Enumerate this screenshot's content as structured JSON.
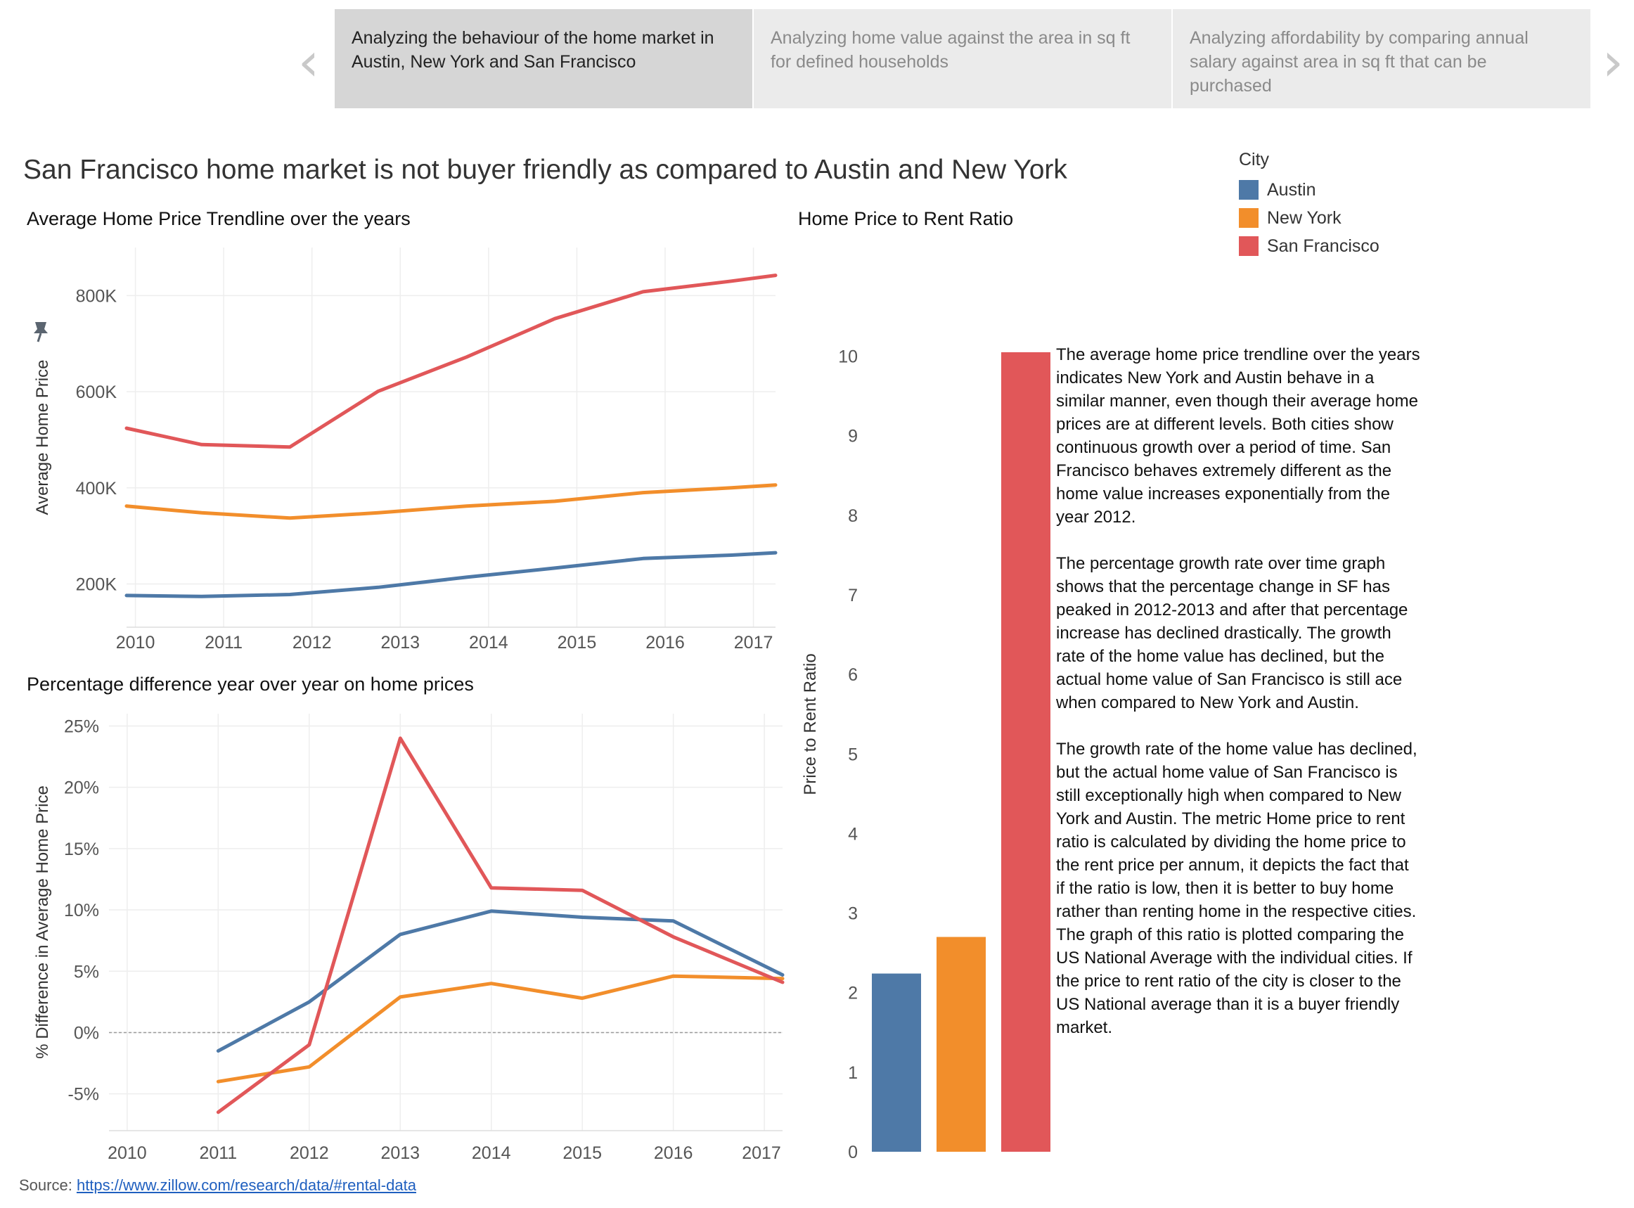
{
  "story_nav": {
    "prev_icon": "chevron-left-icon",
    "next_icon": "chevron-right-icon",
    "points": [
      {
        "label": "Analyzing the behaviour of the home market in Austin, New York and San Francisco",
        "active": true
      },
      {
        "label": "Analyzing home value against the area in sq ft for defined households",
        "active": false
      },
      {
        "label": "Analyzing affordability by comparing annual salary against area in sq ft that can be purchased",
        "active": false
      }
    ]
  },
  "headline": "San Francisco home market is not buyer friendly as compared to Austin and New York",
  "legend": {
    "title": "City",
    "items": [
      {
        "label": "Austin",
        "color": "#4e79a7"
      },
      {
        "label": "New York",
        "color": "#f28e2b"
      },
      {
        "label": "San Francisco",
        "color": "#e15759"
      }
    ]
  },
  "chart_data": [
    {
      "type": "line",
      "title": "Average Home Price Trendline over the years",
      "xlabel": "",
      "ylabel": "Average Home Price",
      "x": [
        2010,
        2011,
        2012,
        2013,
        2014,
        2015,
        2016,
        2017
      ],
      "x_range": [
        2009.9,
        2017.25
      ],
      "ylim": [
        110000,
        900000
      ],
      "yticks": [
        200000,
        400000,
        600000,
        800000
      ],
      "ytick_labels": [
        "200K",
        "400K",
        "600K",
        "800K"
      ],
      "xtick_labels": [
        "2010",
        "2011",
        "2012",
        "2013",
        "2014",
        "2015",
        "2016",
        "2017"
      ],
      "series": [
        {
          "name": "Austin",
          "color": "#4e79a7",
          "x": [
            2009.9,
            2010.75,
            2011.75,
            2012.75,
            2013.75,
            2014.75,
            2015.75,
            2016.75,
            2017.25
          ],
          "values": [
            176000,
            174000,
            178000,
            193000,
            214000,
            233000,
            253000,
            260000,
            265000
          ]
        },
        {
          "name": "New York",
          "color": "#f28e2b",
          "x": [
            2009.9,
            2010.75,
            2011.75,
            2012.75,
            2013.75,
            2014.75,
            2015.75,
            2016.75,
            2017.25
          ],
          "values": [
            362000,
            348000,
            337000,
            348000,
            362000,
            372000,
            390000,
            400000,
            406000
          ]
        },
        {
          "name": "San Francisco",
          "color": "#e15759",
          "x": [
            2009.9,
            2010.75,
            2011.75,
            2012.75,
            2013.75,
            2014.75,
            2015.75,
            2016.75,
            2017.25
          ],
          "values": [
            524000,
            490000,
            485000,
            601000,
            672000,
            752000,
            808000,
            830000,
            842000
          ]
        }
      ]
    },
    {
      "type": "line",
      "title": "Percentage difference year over year on home prices",
      "xlabel": "",
      "ylabel": "% Difference in Average Home Price",
      "x": [
        2010,
        2011,
        2012,
        2013,
        2014,
        2015,
        2016,
        2017
      ],
      "x_range": [
        2009.8,
        2017.2
      ],
      "ylim": [
        -8,
        26
      ],
      "yticks": [
        -5,
        0,
        5,
        10,
        15,
        20,
        25
      ],
      "ytick_labels": [
        "-5%",
        "0%",
        "5%",
        "10%",
        "15%",
        "20%",
        "25%"
      ],
      "xtick_labels": [
        "2010",
        "2011",
        "2012",
        "2013",
        "2014",
        "2015",
        "2016",
        "2017"
      ],
      "zero_line": true,
      "series": [
        {
          "name": "Austin",
          "color": "#4e79a7",
          "x": [
            2011,
            2012,
            2013,
            2014,
            2015,
            2016,
            2017.2
          ],
          "values": [
            -1.5,
            2.5,
            8.0,
            9.9,
            9.4,
            9.1,
            4.7
          ]
        },
        {
          "name": "New York",
          "color": "#f28e2b",
          "x": [
            2011,
            2012,
            2013,
            2014,
            2015,
            2016,
            2017.2
          ],
          "values": [
            -4.0,
            -2.8,
            2.9,
            4.0,
            2.8,
            4.6,
            4.4
          ]
        },
        {
          "name": "San Francisco",
          "color": "#e15759",
          "x": [
            2011,
            2012,
            2013,
            2014,
            2015,
            2016,
            2017.2
          ],
          "values": [
            -6.5,
            -1.0,
            24.0,
            11.8,
            11.6,
            7.8,
            4.1
          ]
        }
      ]
    },
    {
      "type": "bar",
      "title": "Home Price to Rent Ratio",
      "xlabel": "",
      "ylabel": "Price to Rent Ratio",
      "categories": [
        "Austin",
        "New York",
        "San Francisco"
      ],
      "values": [
        2.24,
        2.7,
        10.05
      ],
      "colors": [
        "#4e79a7",
        "#f28e2b",
        "#e15759"
      ],
      "ylim": [
        0,
        10.5
      ],
      "yticks": [
        0,
        1,
        2,
        3,
        4,
        5,
        6,
        7,
        8,
        9,
        10
      ],
      "ytick_labels": [
        "0",
        "1",
        "2",
        "3",
        "4",
        "5",
        "6",
        "7",
        "8",
        "9",
        "10"
      ]
    }
  ],
  "pin_icon": "pin-icon",
  "story_text": [
    "The average home price trendline over the years indicates New York and Austin behave in a similar manner, even though their average home prices are at different levels. Both cities show continuous growth over a period of time. San Francisco behaves extremely different as the home value increases exponentially from the year 2012.",
    "The percentage growth rate over time graph shows that the percentage change in SF has peaked in 2012-2013 and after that percentage increase has declined drastically. The growth rate of the home value has declined, but the actual home value of San Francisco is still ace when compared to New York and Austin.",
    "The growth rate of the home value has declined, but the actual home value of San Francisco is still exceptionally high when compared to New York and Austin. The metric Home price to rent ratio is calculated by dividing the home price to the rent price per annum, it depicts the fact that if the ratio is low, then it is better to buy home rather than renting home in the respective cities. The graph of this ratio is plotted comparing the US National Average with the individual cities. If the price to rent ratio of the city is closer to the US National average than it is a buyer friendly market."
  ],
  "source": {
    "label": "Source:",
    "link_text": "https://www.zillow.com/research/data/#rental-data"
  }
}
